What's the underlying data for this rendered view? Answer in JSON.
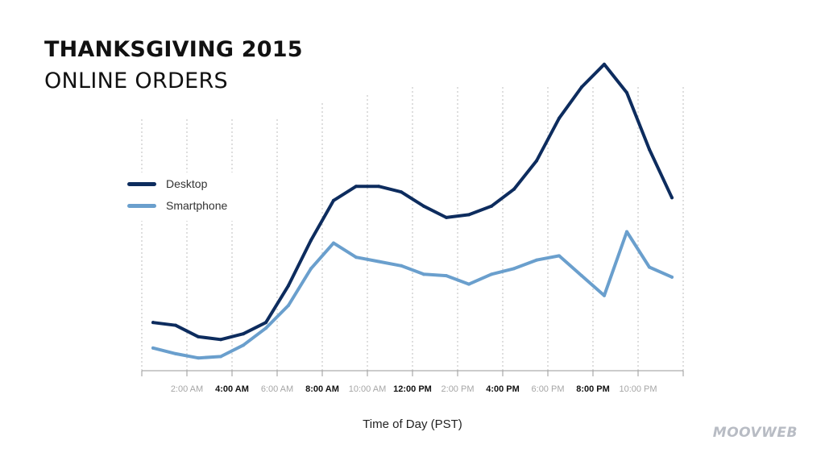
{
  "header": {
    "title": "THANKSGIVING 2015",
    "subtitle": "ONLINE ORDERS"
  },
  "logo": "MOOVWEB",
  "chart_data": {
    "type": "line",
    "title": "THANKSGIVING 2015 ONLINE ORDERS",
    "xlabel": "Time of Day (PST)",
    "ylabel": "",
    "y_axis_labels_shown": false,
    "grid": "vertical dotted",
    "legend_position": "left",
    "tick_labels": [
      {
        "label": "2:00 AM",
        "hour": 2,
        "emphasis": false
      },
      {
        "label": "4:00 AM",
        "hour": 4,
        "emphasis": true
      },
      {
        "label": "6:00 AM",
        "hour": 6,
        "emphasis": false
      },
      {
        "label": "8:00 AM",
        "hour": 8,
        "emphasis": true
      },
      {
        "label": "10:00 AM",
        "hour": 10,
        "emphasis": false
      },
      {
        "label": "12:00 PM",
        "hour": 12,
        "emphasis": true
      },
      {
        "label": "2:00 PM",
        "hour": 14,
        "emphasis": false
      },
      {
        "label": "4:00 PM",
        "hour": 16,
        "emphasis": true
      },
      {
        "label": "6:00 PM",
        "hour": 18,
        "emphasis": false
      },
      {
        "label": "8:00 PM",
        "hour": 20,
        "emphasis": true
      },
      {
        "label": "10:00 PM",
        "hour": 22,
        "emphasis": false
      }
    ],
    "x": [
      0.5,
      1.5,
      2.5,
      3.5,
      4.5,
      5.5,
      6.5,
      7.5,
      8.5,
      9.5,
      10.5,
      11.5,
      12.5,
      13.5,
      14.5,
      15.5,
      16.5,
      17.5,
      18.5,
      19.5,
      20.5,
      21.5,
      22.5,
      23.5
    ],
    "xlim": [
      0,
      24
    ],
    "ylim": [
      0,
      100
    ],
    "series": [
      {
        "name": "Desktop",
        "color": "#0d2c5e",
        "values": [
          17,
          16,
          12,
          11,
          13,
          17,
          30,
          46,
          60,
          65,
          65,
          63,
          58,
          54,
          55,
          58,
          64,
          74,
          89,
          100,
          108,
          98,
          78,
          61
        ]
      },
      {
        "name": "Smartphone",
        "color": "#6a9fcd",
        "values": [
          8,
          6,
          4.5,
          5,
          9,
          15,
          23,
          36,
          45,
          40,
          38.5,
          37,
          34,
          33.5,
          30.5,
          34,
          36,
          39,
          40.5,
          33.5,
          26.5,
          49,
          36.5,
          33
        ]
      }
    ]
  }
}
